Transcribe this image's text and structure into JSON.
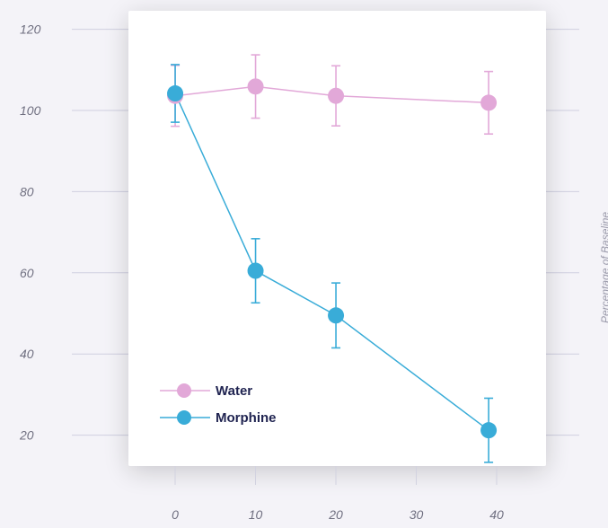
{
  "chart_data": {
    "type": "line",
    "title": "",
    "xlabel": "",
    "ylabel": "Percentage of Baseline",
    "xlim": [
      -2,
      42
    ],
    "ylim": [
      15,
      122
    ],
    "x_ticks": [
      0,
      10,
      20,
      30,
      40
    ],
    "x_tick_labels": [
      "0",
      "10",
      "20",
      "30",
      "40"
    ],
    "y_ticks": [
      20,
      40,
      60,
      80,
      100,
      120
    ],
    "y_tick_labels": [
      "20",
      "40",
      "60",
      "80",
      "100",
      "120"
    ],
    "grid": "horizontal",
    "legend_position": "lower-left",
    "series": [
      {
        "name": "Water",
        "color": "#e2a8d8",
        "x": [
          -1,
          9,
          19,
          38
        ],
        "y": [
          103.6,
          105.9,
          103.6,
          101.9
        ],
        "error": [
          7.5,
          7.8,
          7.4,
          7.7
        ]
      },
      {
        "name": "Morphine",
        "color": "#39acd8",
        "x": [
          -1,
          9,
          19,
          38
        ],
        "y": [
          104.2,
          60.5,
          49.5,
          21.2
        ],
        "error": [
          7.1,
          7.9,
          8.0,
          7.9
        ]
      }
    ]
  }
}
